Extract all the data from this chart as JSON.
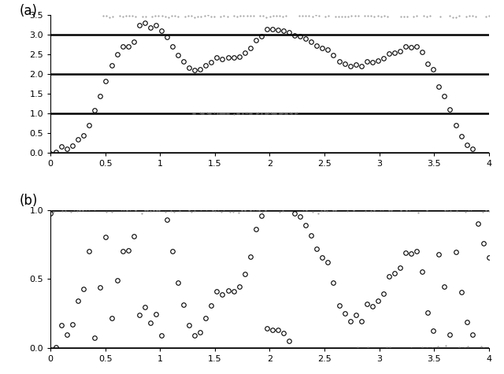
{
  "title_a": "(a)",
  "title_b": "(b)",
  "xlim": [
    0,
    4
  ],
  "ylim_a": [
    0,
    3.5
  ],
  "ylim_b": [
    0,
    1
  ],
  "hlines_a": [
    0,
    1,
    2,
    3
  ],
  "hlines_b": [
    0,
    1
  ],
  "xticks_a": [
    0,
    0.5,
    1,
    1.5,
    2,
    2.5,
    3,
    3.5,
    4
  ],
  "xticks_b": [
    0,
    0.5,
    1,
    1.5,
    2,
    2.5,
    3,
    3.5,
    4
  ],
  "background_color": "#ffffff",
  "hline_lw_bold": 1.8,
  "hline_lw_thin": 0.7,
  "marker_size": 4.0,
  "noise_std": 0.04,
  "n_points": 80
}
